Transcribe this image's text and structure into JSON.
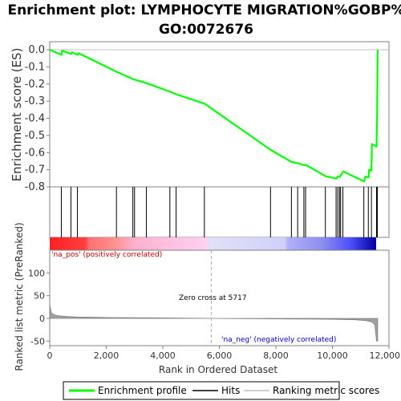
{
  "chart_data": {
    "type": "line",
    "title_line1": "Enrichment plot: LYMPHOCYTE MIGRATION%GOBP%",
    "title_line2": "GO:0072676",
    "es_panel": {
      "ylabel": "Enrichment score (ES)",
      "ylim": [
        -0.8,
        0.0
      ],
      "yticks": [
        "0.0",
        "-0.1",
        "-0.2",
        "-0.3",
        "-0.4",
        "-0.5",
        "-0.6",
        "-0.7",
        "-0.8"
      ],
      "color": "#00ff00",
      "series": [
        {
          "x": [
            0,
            420,
            440,
            760,
            780,
            1000,
            1020,
            2380,
            2960,
            3020,
            3420,
            4260,
            4480,
            5480,
            7820,
            8560,
            8780,
            9000,
            9060,
            9760,
            10140,
            10200,
            10260,
            10300,
            10380,
            11120,
            11160,
            11280,
            11300,
            11380,
            11400,
            11560,
            11580,
            11600
          ],
          "y": [
            0.0,
            -0.03,
            -0.005,
            -0.025,
            -0.015,
            -0.03,
            -0.02,
            -0.13,
            -0.172,
            -0.175,
            -0.195,
            -0.245,
            -0.26,
            -0.315,
            -0.585,
            -0.655,
            -0.662,
            -0.673,
            -0.672,
            -0.738,
            -0.752,
            -0.738,
            -0.742,
            -0.73,
            -0.71,
            -0.768,
            -0.74,
            -0.745,
            -0.7,
            -0.705,
            -0.55,
            -0.565,
            -0.4,
            0.0
          ]
        }
      ]
    },
    "hits": [
      410,
      750,
      980,
      2360,
      2940,
      3000,
      3420,
      4250,
      4470,
      5470,
      7810,
      8550,
      8770,
      8990,
      9050,
      9750,
      10130,
      10190,
      10250,
      10290,
      10370,
      11110,
      11270,
      11380,
      11560,
      11590
    ],
    "ranking_panel": {
      "ylabel": "Ranked list metric (PreRanked)",
      "ylim": [
        -60,
        150
      ],
      "yticks": [
        {
          "value": 100,
          "label": "100"
        },
        {
          "value": 50,
          "label": "50"
        },
        {
          "value": 0,
          "label": "0"
        },
        {
          "value": -50,
          "label": "-50"
        }
      ],
      "x": [
        0,
        60,
        150,
        300,
        600,
        1000,
        2000,
        4000,
        5717,
        8000,
        10000,
        10800,
        11200,
        11400,
        11500,
        11560,
        11600
      ],
      "values": [
        30,
        12,
        8,
        6,
        4,
        3,
        2,
        1,
        0,
        -1,
        -2,
        -3,
        -5,
        -8,
        -14,
        -50,
        -50
      ],
      "positive_label": "'na_pos' (positively correlated)",
      "negative_label": "'na_neg' (negatively correlated)",
      "zero_cross_label": "Zero cross at 5717",
      "zero_cross_x": 5717
    },
    "xlabel": "Rank in Ordered Dataset",
    "xlim": [
      0,
      12000
    ],
    "xticks": [
      {
        "value": 0,
        "label": "0"
      },
      {
        "value": 2000,
        "label": "2,000"
      },
      {
        "value": 4000,
        "label": "4,000"
      },
      {
        "value": 6000,
        "label": "6,000"
      },
      {
        "value": 8000,
        "label": "8,000"
      },
      {
        "value": 10000,
        "label": "10,000"
      },
      {
        "value": 12000,
        "label": "12,000"
      }
    ],
    "n_genes": 11600,
    "legend": [
      {
        "label": "Enrichment profile",
        "color": "#00ff00"
      },
      {
        "label": "Hits",
        "color": "#000000"
      },
      {
        "label": "Ranking metric scores",
        "color": "#c0c0c0"
      }
    ],
    "colors": {
      "positive_strong": "#ff0000",
      "positive_weak": "#ffc0e0",
      "neutral": "#d8d8f8",
      "negative_strong": "#0000ff",
      "axis": "#808080",
      "ranking_fill": "#a0a0a0",
      "zero_line": "#c0c0c0",
      "pos_text": "#c00000",
      "neg_text": "#0000c0"
    }
  }
}
